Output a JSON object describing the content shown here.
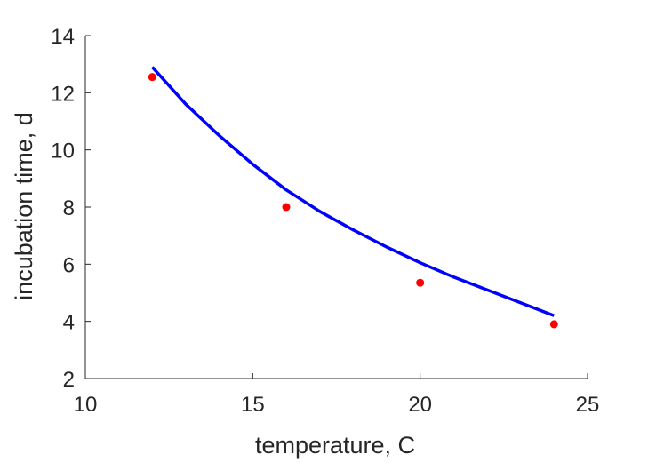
{
  "chart_data": {
    "type": "scatter",
    "title": "",
    "xlabel": "temperature, C",
    "ylabel": "incubation time, d",
    "xlim": [
      10,
      25
    ],
    "ylim": [
      2,
      14
    ],
    "xticks": [
      10,
      15,
      20,
      25
    ],
    "yticks": [
      2,
      4,
      6,
      8,
      10,
      12,
      14
    ],
    "grid": false,
    "legend": "none",
    "series": [
      {
        "kind": "points",
        "color": "#ff0000",
        "x": [
          12,
          16,
          20,
          24
        ],
        "y": [
          12.55,
          8.0,
          5.35,
          3.9
        ]
      },
      {
        "kind": "line",
        "color": "#0000ff",
        "x": [
          12,
          13,
          14,
          15,
          16,
          17,
          18,
          19,
          20,
          21,
          22,
          23,
          24
        ],
        "y": [
          12.9,
          11.6,
          10.5,
          9.5,
          8.6,
          7.85,
          7.2,
          6.6,
          6.05,
          5.55,
          5.1,
          4.65,
          4.2
        ]
      }
    ]
  }
}
